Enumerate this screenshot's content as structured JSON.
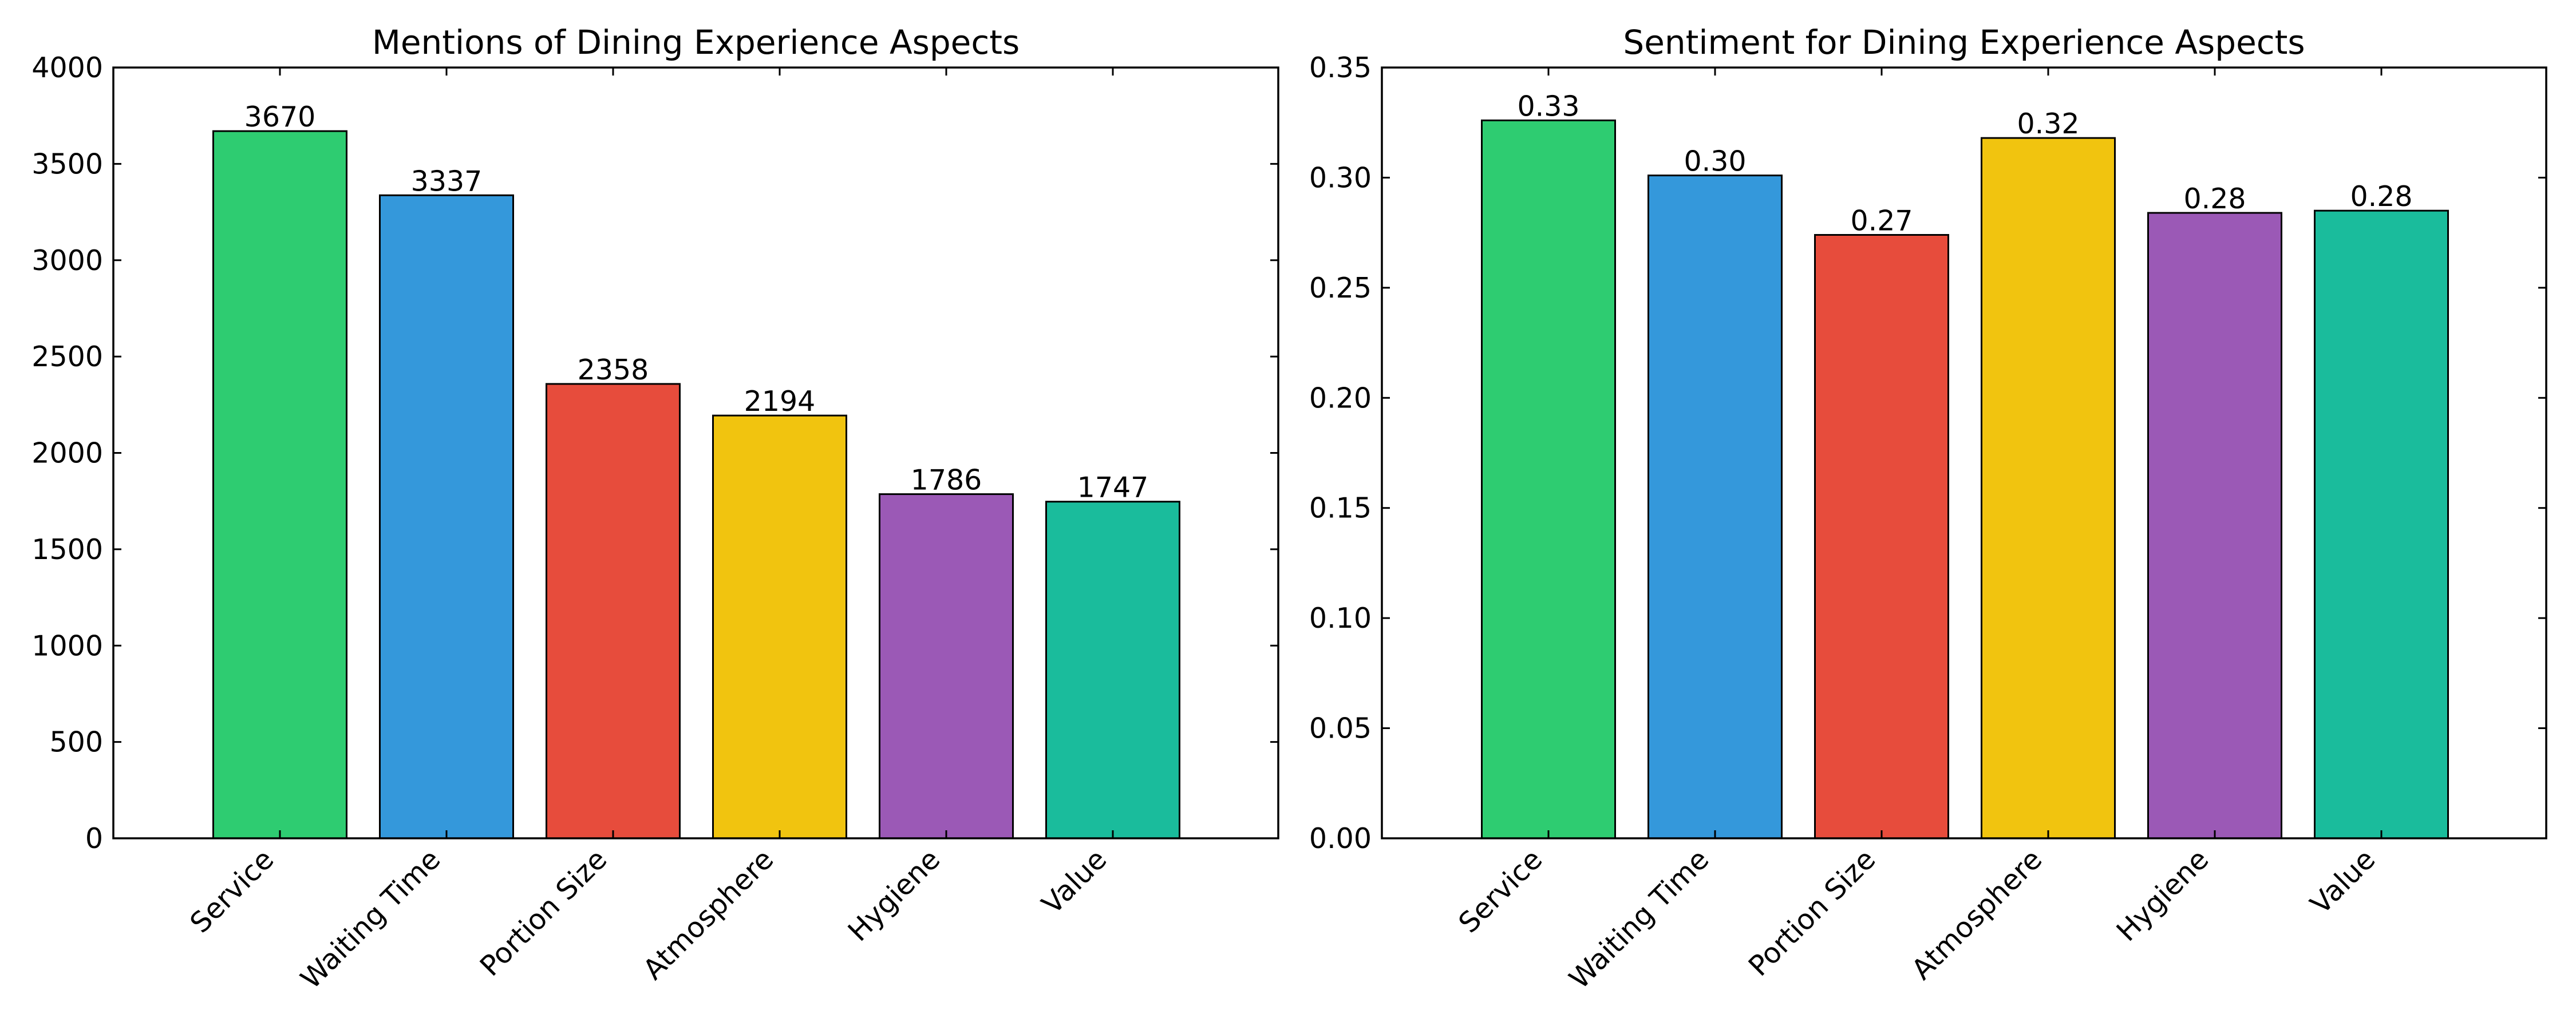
{
  "chart_data": [
    {
      "type": "bar",
      "title": "Mentions of Dining Experience Aspects",
      "xlabel": "",
      "ylabel": "",
      "categories": [
        "Service",
        "Waiting Time",
        "Portion Size",
        "Atmosphere",
        "Hygiene",
        "Value"
      ],
      "values": [
        3670,
        3337,
        2358,
        2194,
        1786,
        1747
      ],
      "data_labels": [
        "3670",
        "3337",
        "2358",
        "2194",
        "1786",
        "1747"
      ],
      "colors": [
        "#2ecc71",
        "#3498db",
        "#e74c3c",
        "#f1c40f",
        "#9b59b6",
        "#1abc9c"
      ],
      "ylim": [
        0,
        4000
      ],
      "yticks": [
        0,
        500,
        1000,
        1500,
        2000,
        2500,
        3000,
        3500,
        4000
      ],
      "ytick_labels": [
        "0",
        "500",
        "1000",
        "1500",
        "2000",
        "2500",
        "3000",
        "3500",
        "4000"
      ],
      "grid": false,
      "legend": "none"
    },
    {
      "type": "bar",
      "title": "Sentiment for Dining Experience Aspects",
      "xlabel": "",
      "ylabel": "",
      "categories": [
        "Service",
        "Waiting Time",
        "Portion Size",
        "Atmosphere",
        "Hygiene",
        "Value"
      ],
      "values": [
        0.326,
        0.301,
        0.274,
        0.318,
        0.284,
        0.285
      ],
      "data_labels": [
        "0.33",
        "0.30",
        "0.27",
        "0.32",
        "0.28",
        "0.28"
      ],
      "colors": [
        "#2ecc71",
        "#3498db",
        "#e74c3c",
        "#f1c40f",
        "#9b59b6",
        "#1abc9c"
      ],
      "ylim": [
        0,
        0.35
      ],
      "yticks": [
        0,
        0.05,
        0.1,
        0.15,
        0.2,
        0.25,
        0.3,
        0.35
      ],
      "ytick_labels": [
        "0.00",
        "0.05",
        "0.10",
        "0.15",
        "0.20",
        "0.25",
        "0.30",
        "0.35"
      ],
      "grid": false,
      "legend": "none"
    }
  ]
}
